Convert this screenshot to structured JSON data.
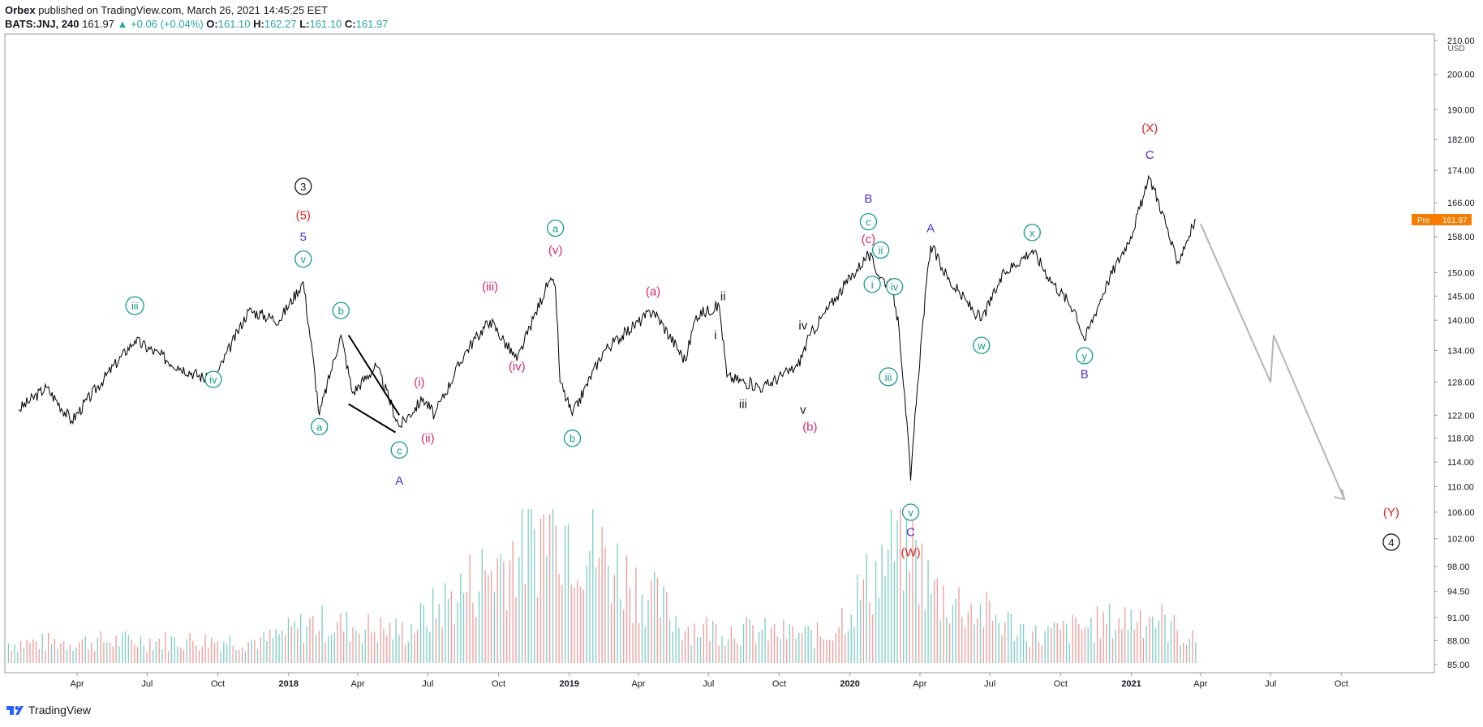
{
  "header": {
    "publisher": "Orbex",
    "published_text": "published on TradingView.com, March 26, 2021 14:45:25 EET",
    "symbol": "BATS:JNJ, 240",
    "last": "161.97",
    "arrow": "▲",
    "change": "+0.06 (+0.04%)",
    "o_label": "O:",
    "o": "161.10",
    "h_label": "H:",
    "h": "162.27",
    "l_label": "L:",
    "l": "161.10",
    "c_label": "C:",
    "c": "161.97"
  },
  "footer": {
    "brand": "TradingView"
  },
  "price_badge": {
    "tag": "Pre",
    "value": "161.97"
  },
  "chart_data": {
    "type": "line",
    "title": "",
    "currency": "USD",
    "y_scale": "log",
    "ylim": [
      84,
      212
    ],
    "y_ticks": [
      "85.00",
      "88.00",
      "91.00",
      "94.50",
      "98.00",
      "102.00",
      "106.00",
      "110.00",
      "114.00",
      "118.00",
      "122.00",
      "128.00",
      "134.00",
      "140.00",
      "145.00",
      "150.00",
      "158.00",
      "166.00",
      "174.00",
      "182.00",
      "190.00",
      "200.00",
      "210.00"
    ],
    "x_ticks": [
      "Apr",
      "Jul",
      "Oct",
      "2018",
      "Apr",
      "Jul",
      "Oct",
      "2019",
      "Apr",
      "Jul",
      "Oct",
      "2020",
      "Apr",
      "Jul",
      "Oct",
      "2021",
      "Apr",
      "Jul",
      "Oct"
    ],
    "series": [
      {
        "values": [
          {
            "date": "2017-01-15",
            "price": 123
          },
          {
            "date": "2017-02-20",
            "price": 127
          },
          {
            "date": "2017-03-25",
            "price": 121
          },
          {
            "date": "2017-06-15",
            "price": 136
          },
          {
            "date": "2017-08-10",
            "price": 131
          },
          {
            "date": "2017-09-25",
            "price": 128
          },
          {
            "date": "2017-11-10",
            "price": 142
          },
          {
            "date": "2017-12-20",
            "price": 140
          },
          {
            "date": "2018-01-20",
            "price": 148
          },
          {
            "date": "2018-02-10",
            "price": 122
          },
          {
            "date": "2018-03-10",
            "price": 137
          },
          {
            "date": "2018-03-25",
            "price": 126
          },
          {
            "date": "2018-04-25",
            "price": 131
          },
          {
            "date": "2018-05-25",
            "price": 120
          },
          {
            "date": "2018-06-25",
            "price": 125
          },
          {
            "date": "2018-07-10",
            "price": 122
          },
          {
            "date": "2018-08-20",
            "price": 134
          },
          {
            "date": "2018-09-20",
            "price": 140
          },
          {
            "date": "2018-10-25",
            "price": 132
          },
          {
            "date": "2018-12-05",
            "price": 148
          },
          {
            "date": "2018-12-14",
            "price": 147
          },
          {
            "date": "2018-12-20",
            "price": 128
          },
          {
            "date": "2019-01-05",
            "price": 122
          },
          {
            "date": "2019-02-15",
            "price": 134
          },
          {
            "date": "2019-04-20",
            "price": 142
          },
          {
            "date": "2019-06-01",
            "price": 132
          },
          {
            "date": "2019-06-15",
            "price": 141
          },
          {
            "date": "2019-07-15",
            "price": 143
          },
          {
            "date": "2019-07-25",
            "price": 129
          },
          {
            "date": "2019-09-10",
            "price": 127
          },
          {
            "date": "2019-10-25",
            "price": 131
          },
          {
            "date": "2019-11-10",
            "price": 137
          },
          {
            "date": "2019-12-15",
            "price": 145
          },
          {
            "date": "2020-01-25",
            "price": 154
          },
          {
            "date": "2020-02-10",
            "price": 149
          },
          {
            "date": "2020-02-25",
            "price": 147
          },
          {
            "date": "2020-03-05",
            "price": 138
          },
          {
            "date": "2020-03-12",
            "price": 126
          },
          {
            "date": "2020-03-20",
            "price": 111
          },
          {
            "date": "2020-04-05",
            "price": 140
          },
          {
            "date": "2020-04-15",
            "price": 156
          },
          {
            "date": "2020-05-10",
            "price": 148
          },
          {
            "date": "2020-06-20",
            "price": 140
          },
          {
            "date": "2020-07-20",
            "price": 150
          },
          {
            "date": "2020-08-25",
            "price": 155
          },
          {
            "date": "2020-09-20",
            "price": 148
          },
          {
            "date": "2020-10-20",
            "price": 142
          },
          {
            "date": "2020-11-01",
            "price": 136
          },
          {
            "date": "2020-12-01",
            "price": 148
          },
          {
            "date": "2020-12-31",
            "price": 158
          },
          {
            "date": "2021-01-25",
            "price": 172
          },
          {
            "date": "2021-02-10",
            "price": 164
          },
          {
            "date": "2021-03-01",
            "price": 152
          },
          {
            "date": "2021-03-26",
            "price": 161.97
          }
        ]
      }
    ],
    "projection": [
      {
        "date": "2021-04-01",
        "price": 161
      },
      {
        "date": "2021-07-01",
        "price": 128
      },
      {
        "date": "2021-07-05",
        "price": 137
      },
      {
        "date": "2021-10-05",
        "price": 108
      }
    ],
    "wedge_lines": [
      [
        {
          "date": "2018-03-20",
          "price": 137
        },
        {
          "date": "2018-05-25",
          "price": 122
        }
      ],
      [
        {
          "date": "2018-03-20",
          "price": 124
        },
        {
          "date": "2018-05-20",
          "price": 119
        }
      ]
    ],
    "volume_note": "volume histogram at bottom of chart",
    "volume": [
      {
        "date": "2017-01-01",
        "v": 0.22
      },
      {
        "date": "2017-06-01",
        "v": 0.25
      },
      {
        "date": "2017-12-01",
        "v": 0.25
      },
      {
        "date": "2018-02-01",
        "v": 0.45
      },
      {
        "date": "2018-06-01",
        "v": 0.35
      },
      {
        "date": "2018-12-18",
        "v": 1.6
      },
      {
        "date": "2019-06-01",
        "v": 0.4
      },
      {
        "date": "2019-12-01",
        "v": 0.3
      },
      {
        "date": "2020-03-01",
        "v": 1.3
      },
      {
        "date": "2020-03-15",
        "v": 1.4
      },
      {
        "date": "2020-04-15",
        "v": 0.8
      },
      {
        "date": "2020-09-01",
        "v": 0.3
      },
      {
        "date": "2021-01-25",
        "v": 0.55
      },
      {
        "date": "2021-03-20",
        "v": 0.25
      }
    ],
    "annotations": [
      {
        "text": "3",
        "date": "2018-01-20",
        "price": 170,
        "color": "#131722",
        "circle": true
      },
      {
        "text": "(5)",
        "date": "2018-01-20",
        "price": 163,
        "color": "#e61e1e"
      },
      {
        "text": "5",
        "date": "2018-01-20",
        "price": 158,
        "color": "#4a2fd6"
      },
      {
        "text": "v",
        "date": "2018-01-20",
        "price": 153,
        "color": "#129b8a",
        "circle": true
      },
      {
        "text": "iii",
        "date": "2017-06-15",
        "price": 143,
        "color": "#129b8a",
        "circle": true
      },
      {
        "text": "iv",
        "date": "2017-09-25",
        "price": 128.5,
        "color": "#129b8a",
        "circle": true
      },
      {
        "text": "a",
        "date": "2018-02-10",
        "price": 120,
        "color": "#129b8a",
        "circle": true
      },
      {
        "text": "b",
        "date": "2018-03-10",
        "price": 142,
        "color": "#129b8a",
        "circle": true
      },
      {
        "text": "c",
        "date": "2018-05-25",
        "price": 116,
        "color": "#129b8a",
        "circle": true
      },
      {
        "text": "A",
        "date": "2018-05-25",
        "price": 111,
        "color": "#4a2fd6"
      },
      {
        "text": "(i)",
        "date": "2018-06-20",
        "price": 128,
        "color": "#d8266f"
      },
      {
        "text": "(ii)",
        "date": "2018-07-01",
        "price": 118,
        "color": "#d8266f"
      },
      {
        "text": "(iii)",
        "date": "2018-09-20",
        "price": 147,
        "color": "#d8266f"
      },
      {
        "text": "(iv)",
        "date": "2018-10-25",
        "price": 131,
        "color": "#d8266f"
      },
      {
        "text": "(v)",
        "date": "2018-12-14",
        "price": 155,
        "color": "#d8266f"
      },
      {
        "text": "a",
        "date": "2018-12-14",
        "price": 160,
        "color": "#129b8a",
        "circle": true
      },
      {
        "text": "b",
        "date": "2019-01-05",
        "price": 118,
        "color": "#129b8a",
        "circle": true
      },
      {
        "text": "(a)",
        "date": "2019-04-20",
        "price": 146,
        "color": "#d8266f"
      },
      {
        "text": "ii",
        "date": "2019-07-20",
        "price": 145,
        "color": "#131722"
      },
      {
        "text": "i",
        "date": "2019-07-10",
        "price": 137,
        "color": "#131722"
      },
      {
        "text": "iii",
        "date": "2019-08-15",
        "price": 124,
        "color": "#131722"
      },
      {
        "text": "iv",
        "date": "2019-11-01",
        "price": 139,
        "color": "#131722"
      },
      {
        "text": "v",
        "date": "2019-11-01",
        "price": 123,
        "color": "#131722"
      },
      {
        "text": "(b)",
        "date": "2019-11-10",
        "price": 120,
        "color": "#d8266f"
      },
      {
        "text": "B",
        "date": "2020-01-25",
        "price": 167,
        "color": "#4a2fd6"
      },
      {
        "text": "c",
        "date": "2020-01-25",
        "price": 161.5,
        "color": "#129b8a",
        "circle": true
      },
      {
        "text": "(c)",
        "date": "2020-01-25",
        "price": 157.5,
        "color": "#d8266f"
      },
      {
        "text": "ii",
        "date": "2020-02-10",
        "price": 155,
        "color": "#129b8a",
        "circle": true
      },
      {
        "text": "i",
        "date": "2020-01-30",
        "price": 147.5,
        "color": "#129b8a",
        "circle": true
      },
      {
        "text": "iv",
        "date": "2020-02-28",
        "price": 147,
        "color": "#129b8a",
        "circle": true
      },
      {
        "text": "iii",
        "date": "2020-02-20",
        "price": 129,
        "color": "#129b8a",
        "circle": true
      },
      {
        "text": "v",
        "date": "2020-03-20",
        "price": 106,
        "color": "#129b8a",
        "circle": true
      },
      {
        "text": "C",
        "date": "2020-03-20",
        "price": 103,
        "color": "#4a2fd6"
      },
      {
        "text": "(W)",
        "date": "2020-03-20",
        "price": 100,
        "color": "#e61e1e"
      },
      {
        "text": "A",
        "date": "2020-04-15",
        "price": 160,
        "color": "#4a2fd6"
      },
      {
        "text": "w",
        "date": "2020-06-20",
        "price": 135,
        "color": "#129b8a",
        "circle": true
      },
      {
        "text": "x",
        "date": "2020-08-25",
        "price": 159,
        "color": "#129b8a",
        "circle": true
      },
      {
        "text": "y",
        "date": "2020-11-01",
        "price": 133,
        "color": "#129b8a",
        "circle": true
      },
      {
        "text": "B",
        "date": "2020-11-01",
        "price": 129.5,
        "color": "#4a2fd6"
      },
      {
        "text": "(X)",
        "date": "2021-01-25",
        "price": 185,
        "color": "#e61e1e"
      },
      {
        "text": "C",
        "date": "2021-01-25",
        "price": 178,
        "color": "#4a2fd6"
      },
      {
        "text": "(Y)",
        "date": "2021-12-05",
        "price": 106,
        "color": "#e61e1e"
      },
      {
        "text": "4",
        "date": "2021-12-05",
        "price": 101.5,
        "color": "#131722",
        "circle": true
      }
    ],
    "colors": {
      "line": "#000000",
      "axis": "#555555",
      "projection": "#b5b5b5",
      "vol_up": "#7ccdc4",
      "vol_down": "#ef9a9a",
      "badge": "#f57c00"
    }
  }
}
